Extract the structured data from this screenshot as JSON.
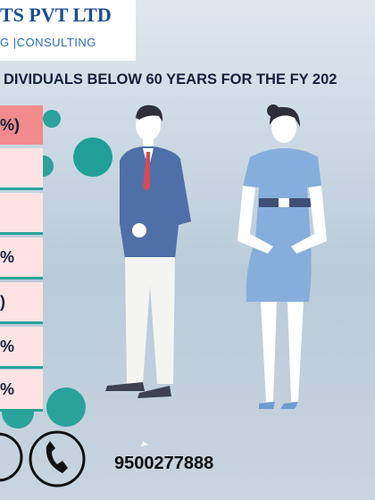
{
  "header": {
    "company": "TS PVT LTD",
    "tagline": "G |CONSULTING"
  },
  "title": "DIVIDUALS BELOW 60 YEARS FOR  THE FY 202",
  "table": {
    "cells": [
      "%)",
      "%",
      ")",
      "%",
      "%"
    ]
  },
  "contact": {
    "phone": "9500277888"
  }
}
